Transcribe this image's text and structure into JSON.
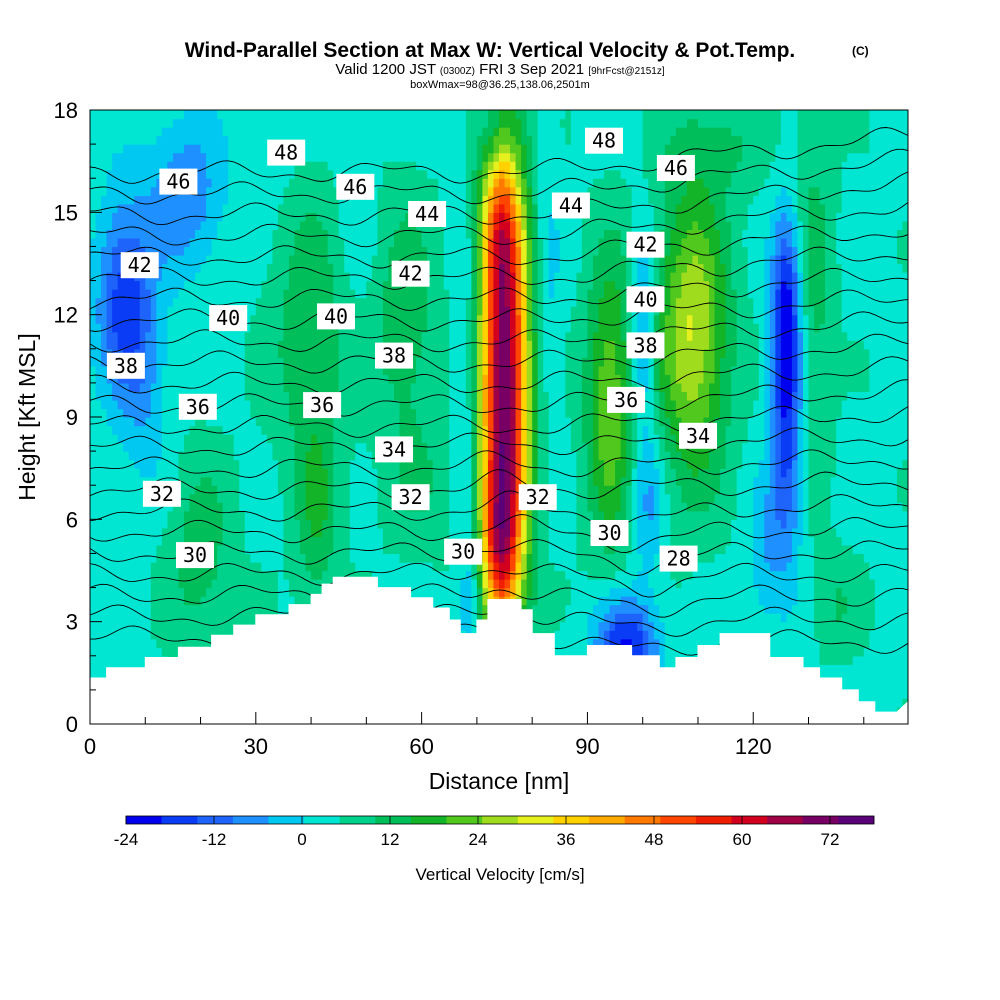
{
  "chart_data": {
    "type": "heatmap",
    "title": "Wind-Parallel Section at Max W: Vertical Velocity & Pot.Temp.",
    "title_suffix": "(C)",
    "subtitle": {
      "part1": "Valid 1200 JST",
      "part2": "(0300Z)",
      "part3": "FRI 3 Sep 2021",
      "part4": "[9hrFcst@2151z]"
    },
    "subtitle2": "boxWmax=98@36.25,138.06,2501m",
    "xlabel": "Distance [nm]",
    "ylabel": "Height [Kft MSL]",
    "xlim": [
      0,
      148
    ],
    "ylim": [
      0,
      18
    ],
    "x_ticks": [
      0,
      30,
      60,
      90,
      120
    ],
    "y_ticks": [
      0,
      3,
      6,
      9,
      12,
      15,
      18
    ],
    "colorbar": {
      "label": "Vertical Velocity [cm/s]",
      "ticks": [
        "-24",
        "-12",
        "0",
        "12",
        "24",
        "36",
        "48",
        "60",
        "72"
      ],
      "range": [
        -24,
        78
      ],
      "colors": [
        "#0000f0",
        "#0a3cf5",
        "#1e64fa",
        "#1e90ff",
        "#00c8f0",
        "#00e6d2",
        "#00d28c",
        "#00be5a",
        "#14b428",
        "#50c81e",
        "#a0dc1e",
        "#e6f01e",
        "#ffd200",
        "#ffaa00",
        "#ff7800",
        "#ff4600",
        "#f01e00",
        "#d2001e",
        "#a00046",
        "#780064",
        "#5a0078"
      ]
    },
    "terrain": [
      [
        0,
        1.35
      ],
      [
        3,
        1.35
      ],
      [
        3,
        1.65
      ],
      [
        10,
        1.65
      ],
      [
        10,
        1.95
      ],
      [
        16,
        1.95
      ],
      [
        16,
        2.25
      ],
      [
        22,
        2.25
      ],
      [
        22,
        2.6
      ],
      [
        26,
        2.6
      ],
      [
        26,
        2.9
      ],
      [
        30,
        2.9
      ],
      [
        30,
        3.2
      ],
      [
        36,
        3.2
      ],
      [
        36,
        3.5
      ],
      [
        40,
        3.5
      ],
      [
        40,
        3.8
      ],
      [
        42,
        3.8
      ],
      [
        42,
        4.1
      ],
      [
        44,
        4.1
      ],
      [
        44,
        4.3
      ],
      [
        52,
        4.3
      ],
      [
        52,
        4.0
      ],
      [
        58,
        4.0
      ],
      [
        58,
        3.7
      ],
      [
        62,
        3.7
      ],
      [
        62,
        3.4
      ],
      [
        65,
        3.4
      ],
      [
        65,
        3.05
      ],
      [
        67,
        3.05
      ],
      [
        67,
        2.65
      ],
      [
        70,
        2.65
      ],
      [
        70,
        3.05
      ],
      [
        72,
        3.05
      ],
      [
        72,
        3.65
      ],
      [
        78,
        3.65
      ],
      [
        78,
        3.35
      ],
      [
        80,
        3.35
      ],
      [
        80,
        2.65
      ],
      [
        84,
        2.65
      ],
      [
        84,
        2.0
      ],
      [
        90,
        2.0
      ],
      [
        90,
        2.3
      ],
      [
        98,
        2.3
      ],
      [
        98,
        2.0
      ],
      [
        103,
        2.0
      ],
      [
        103,
        1.65
      ],
      [
        106,
        1.65
      ],
      [
        106,
        1.95
      ],
      [
        110,
        1.95
      ],
      [
        110,
        2.3
      ],
      [
        114,
        2.3
      ],
      [
        114,
        2.65
      ],
      [
        123,
        2.65
      ],
      [
        123,
        1.95
      ],
      [
        129,
        1.95
      ],
      [
        129,
        1.65
      ],
      [
        132,
        1.65
      ],
      [
        132,
        1.35
      ],
      [
        136,
        1.35
      ],
      [
        136,
        1.0
      ],
      [
        139,
        1.0
      ],
      [
        139,
        0.65
      ],
      [
        142,
        0.65
      ],
      [
        142,
        0.35
      ],
      [
        146,
        0.35
      ],
      [
        148,
        0.65
      ],
      [
        148,
        0
      ],
      [
        0,
        0
      ]
    ],
    "w_features": [
      {
        "x": 75,
        "y": 9.5,
        "sx": 3.0,
        "sy": 4.8,
        "w": 70
      },
      {
        "x": 74,
        "y": 5.2,
        "sx": 2.2,
        "sy": 1.4,
        "w": 20
      },
      {
        "x": 74,
        "y": 14.5,
        "sx": 2.5,
        "sy": 1.6,
        "w": 18
      },
      {
        "x": 109,
        "y": 11.5,
        "sx": 4.5,
        "sy": 3.0,
        "w": 26
      },
      {
        "x": 94,
        "y": 9.5,
        "sx": 3.0,
        "sy": 3.0,
        "w": 20
      },
      {
        "x": 40,
        "y": 11.5,
        "sx": 5.0,
        "sy": 3.0,
        "w": 10
      },
      {
        "x": 41,
        "y": 6.0,
        "sx": 2.5,
        "sy": 2.0,
        "w": 10
      },
      {
        "x": 20,
        "y": 5.0,
        "sx": 4.0,
        "sy": 2.0,
        "w": 9
      },
      {
        "x": 57,
        "y": 12.0,
        "sx": 4.0,
        "sy": 2.5,
        "w": 10
      },
      {
        "x": 131,
        "y": 13.0,
        "sx": 2.5,
        "sy": 4.0,
        "w": 8
      },
      {
        "x": 135,
        "y": 3.5,
        "sx": 3.0,
        "sy": 1.0,
        "w": 6
      },
      {
        "x": 6,
        "y": 12.5,
        "sx": 3.5,
        "sy": 2.0,
        "w": -20
      },
      {
        "x": 17,
        "y": 15.5,
        "sx": 5.0,
        "sy": 1.6,
        "w": -13
      },
      {
        "x": 10,
        "y": 10.0,
        "sx": 3.0,
        "sy": 2.0,
        "w": -8
      },
      {
        "x": 126,
        "y": 9.0,
        "sx": 2.0,
        "sy": 3.0,
        "w": -22
      },
      {
        "x": 126,
        "y": 12.5,
        "sx": 1.8,
        "sy": 1.8,
        "w": -16
      },
      {
        "x": 122,
        "y": 5.0,
        "sx": 2.0,
        "sy": 1.5,
        "w": -8
      },
      {
        "x": 97,
        "y": 2.3,
        "sx": 4.0,
        "sy": 1.0,
        "w": -24
      },
      {
        "x": 100,
        "y": 11.5,
        "sx": 1.5,
        "sy": 2.0,
        "w": -14
      },
      {
        "x": 101,
        "y": 6.5,
        "sx": 2.0,
        "sy": 1.5,
        "w": -10
      },
      {
        "x": 68,
        "y": 9.0,
        "sx": 1.5,
        "sy": 4.5,
        "w": -7
      },
      {
        "x": 69,
        "y": 3.5,
        "sx": 1.2,
        "sy": 1.0,
        "w": -10
      },
      {
        "x": 83,
        "y": 13.0,
        "sx": 1.5,
        "sy": 3.0,
        "w": -5
      },
      {
        "x": 73,
        "y": 17.5,
        "sx": 2.0,
        "sy": 0.8,
        "w": -6
      },
      {
        "x": 32,
        "y": 16.5,
        "sx": 3.0,
        "sy": 1.0,
        "w": -4
      },
      {
        "x": 48,
        "y": 14.5,
        "sx": 3.0,
        "sy": 2.0,
        "w": -3
      },
      {
        "x": 114,
        "y": 17.0,
        "sx": 6.0,
        "sy": 1.0,
        "w": 6
      },
      {
        "x": 60,
        "y": 7.0,
        "sx": 5.0,
        "sy": 1.5,
        "w": 5
      }
    ],
    "theta_contours": {
      "values": [
        27,
        28,
        29,
        30,
        31,
        32,
        33,
        34,
        35,
        36,
        37,
        38,
        39,
        40,
        41,
        42,
        43,
        44,
        45,
        46,
        47,
        48,
        49
      ],
      "spacing_kft": 0.62,
      "base_height_kft": 4.4,
      "base_value": 30
    },
    "contour_labels": [
      {
        "text": "48",
        "x": 35.5,
        "y": 16.75
      },
      {
        "text": "46",
        "x": 16,
        "y": 15.9
      },
      {
        "text": "46",
        "x": 48,
        "y": 15.75
      },
      {
        "text": "44",
        "x": 61,
        "y": 14.95
      },
      {
        "text": "42",
        "x": 9,
        "y": 13.45
      },
      {
        "text": "42",
        "x": 58,
        "y": 13.2
      },
      {
        "text": "40",
        "x": 25,
        "y": 11.9
      },
      {
        "text": "40",
        "x": 44.5,
        "y": 11.95
      },
      {
        "text": "38",
        "x": 6.5,
        "y": 10.5
      },
      {
        "text": "38",
        "x": 55,
        "y": 10.8
      },
      {
        "text": "36",
        "x": 19.5,
        "y": 9.3
      },
      {
        "text": "36",
        "x": 42,
        "y": 9.35
      },
      {
        "text": "34",
        "x": 55,
        "y": 8.05
      },
      {
        "text": "32",
        "x": 13,
        "y": 6.75
      },
      {
        "text": "32",
        "x": 58,
        "y": 6.65
      },
      {
        "text": "32",
        "x": 81,
        "y": 6.65
      },
      {
        "text": "30",
        "x": 19,
        "y": 4.95
      },
      {
        "text": "30",
        "x": 67.5,
        "y": 5.05
      },
      {
        "text": "48",
        "x": 93,
        "y": 17.1
      },
      {
        "text": "46",
        "x": 106,
        "y": 16.3
      },
      {
        "text": "44",
        "x": 87,
        "y": 15.2
      },
      {
        "text": "42",
        "x": 100.5,
        "y": 14.05
      },
      {
        "text": "40",
        "x": 100.5,
        "y": 12.45
      },
      {
        "text": "38",
        "x": 100.5,
        "y": 11.1
      },
      {
        "text": "36",
        "x": 97,
        "y": 9.5
      },
      {
        "text": "34",
        "x": 110,
        "y": 8.45
      },
      {
        "text": "30",
        "x": 94,
        "y": 5.6
      },
      {
        "text": "28",
        "x": 106.5,
        "y": 4.85
      }
    ]
  }
}
